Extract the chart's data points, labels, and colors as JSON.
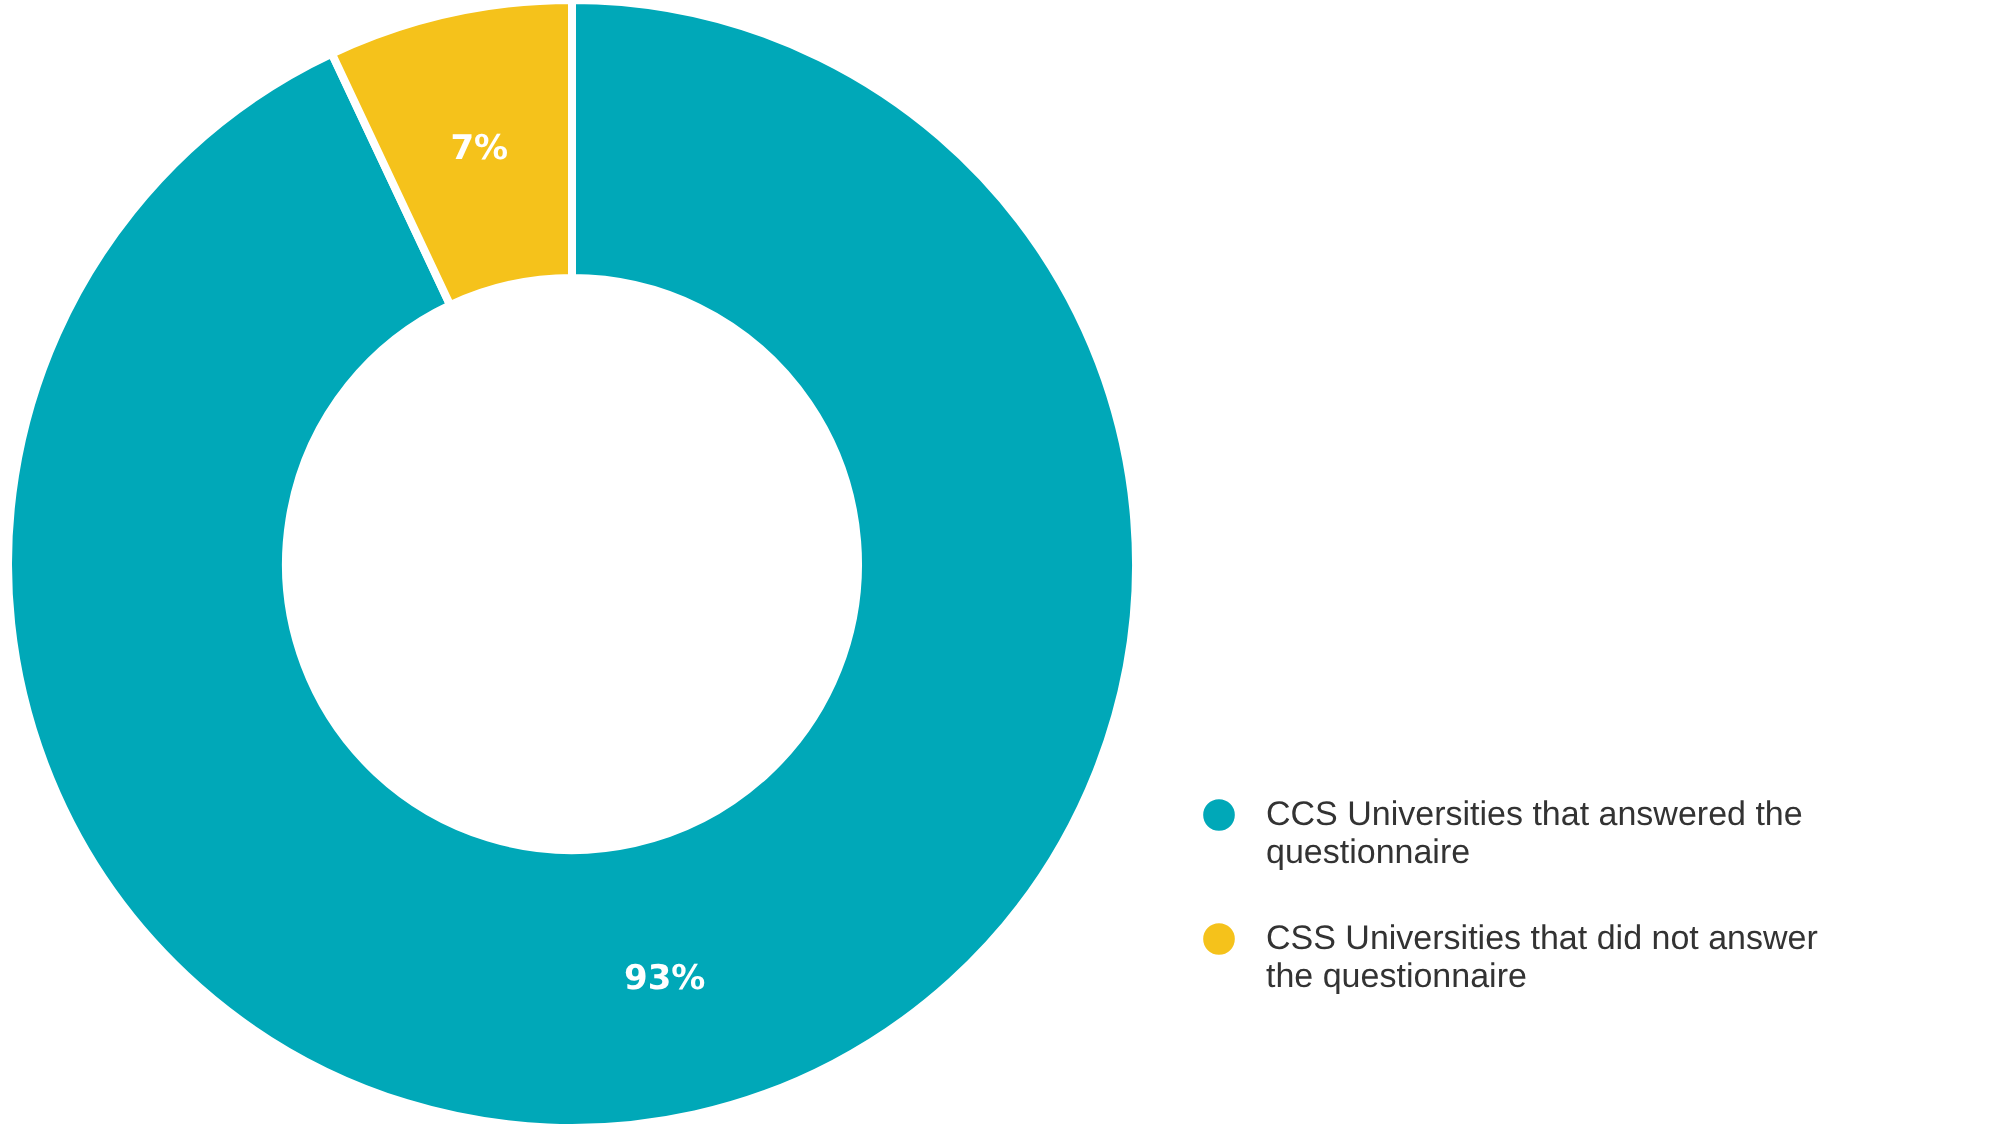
{
  "chart_data": {
    "type": "donut",
    "categories": [
      "CCS Universities that answered the questionnaire",
      "CSS Universities that did not answer the questionnaire"
    ],
    "values": [
      93,
      7
    ],
    "colors": [
      "#00a8b8",
      "#f5c21b"
    ],
    "value_labels": [
      "93%",
      "7%"
    ],
    "legend": "bottom right"
  }
}
